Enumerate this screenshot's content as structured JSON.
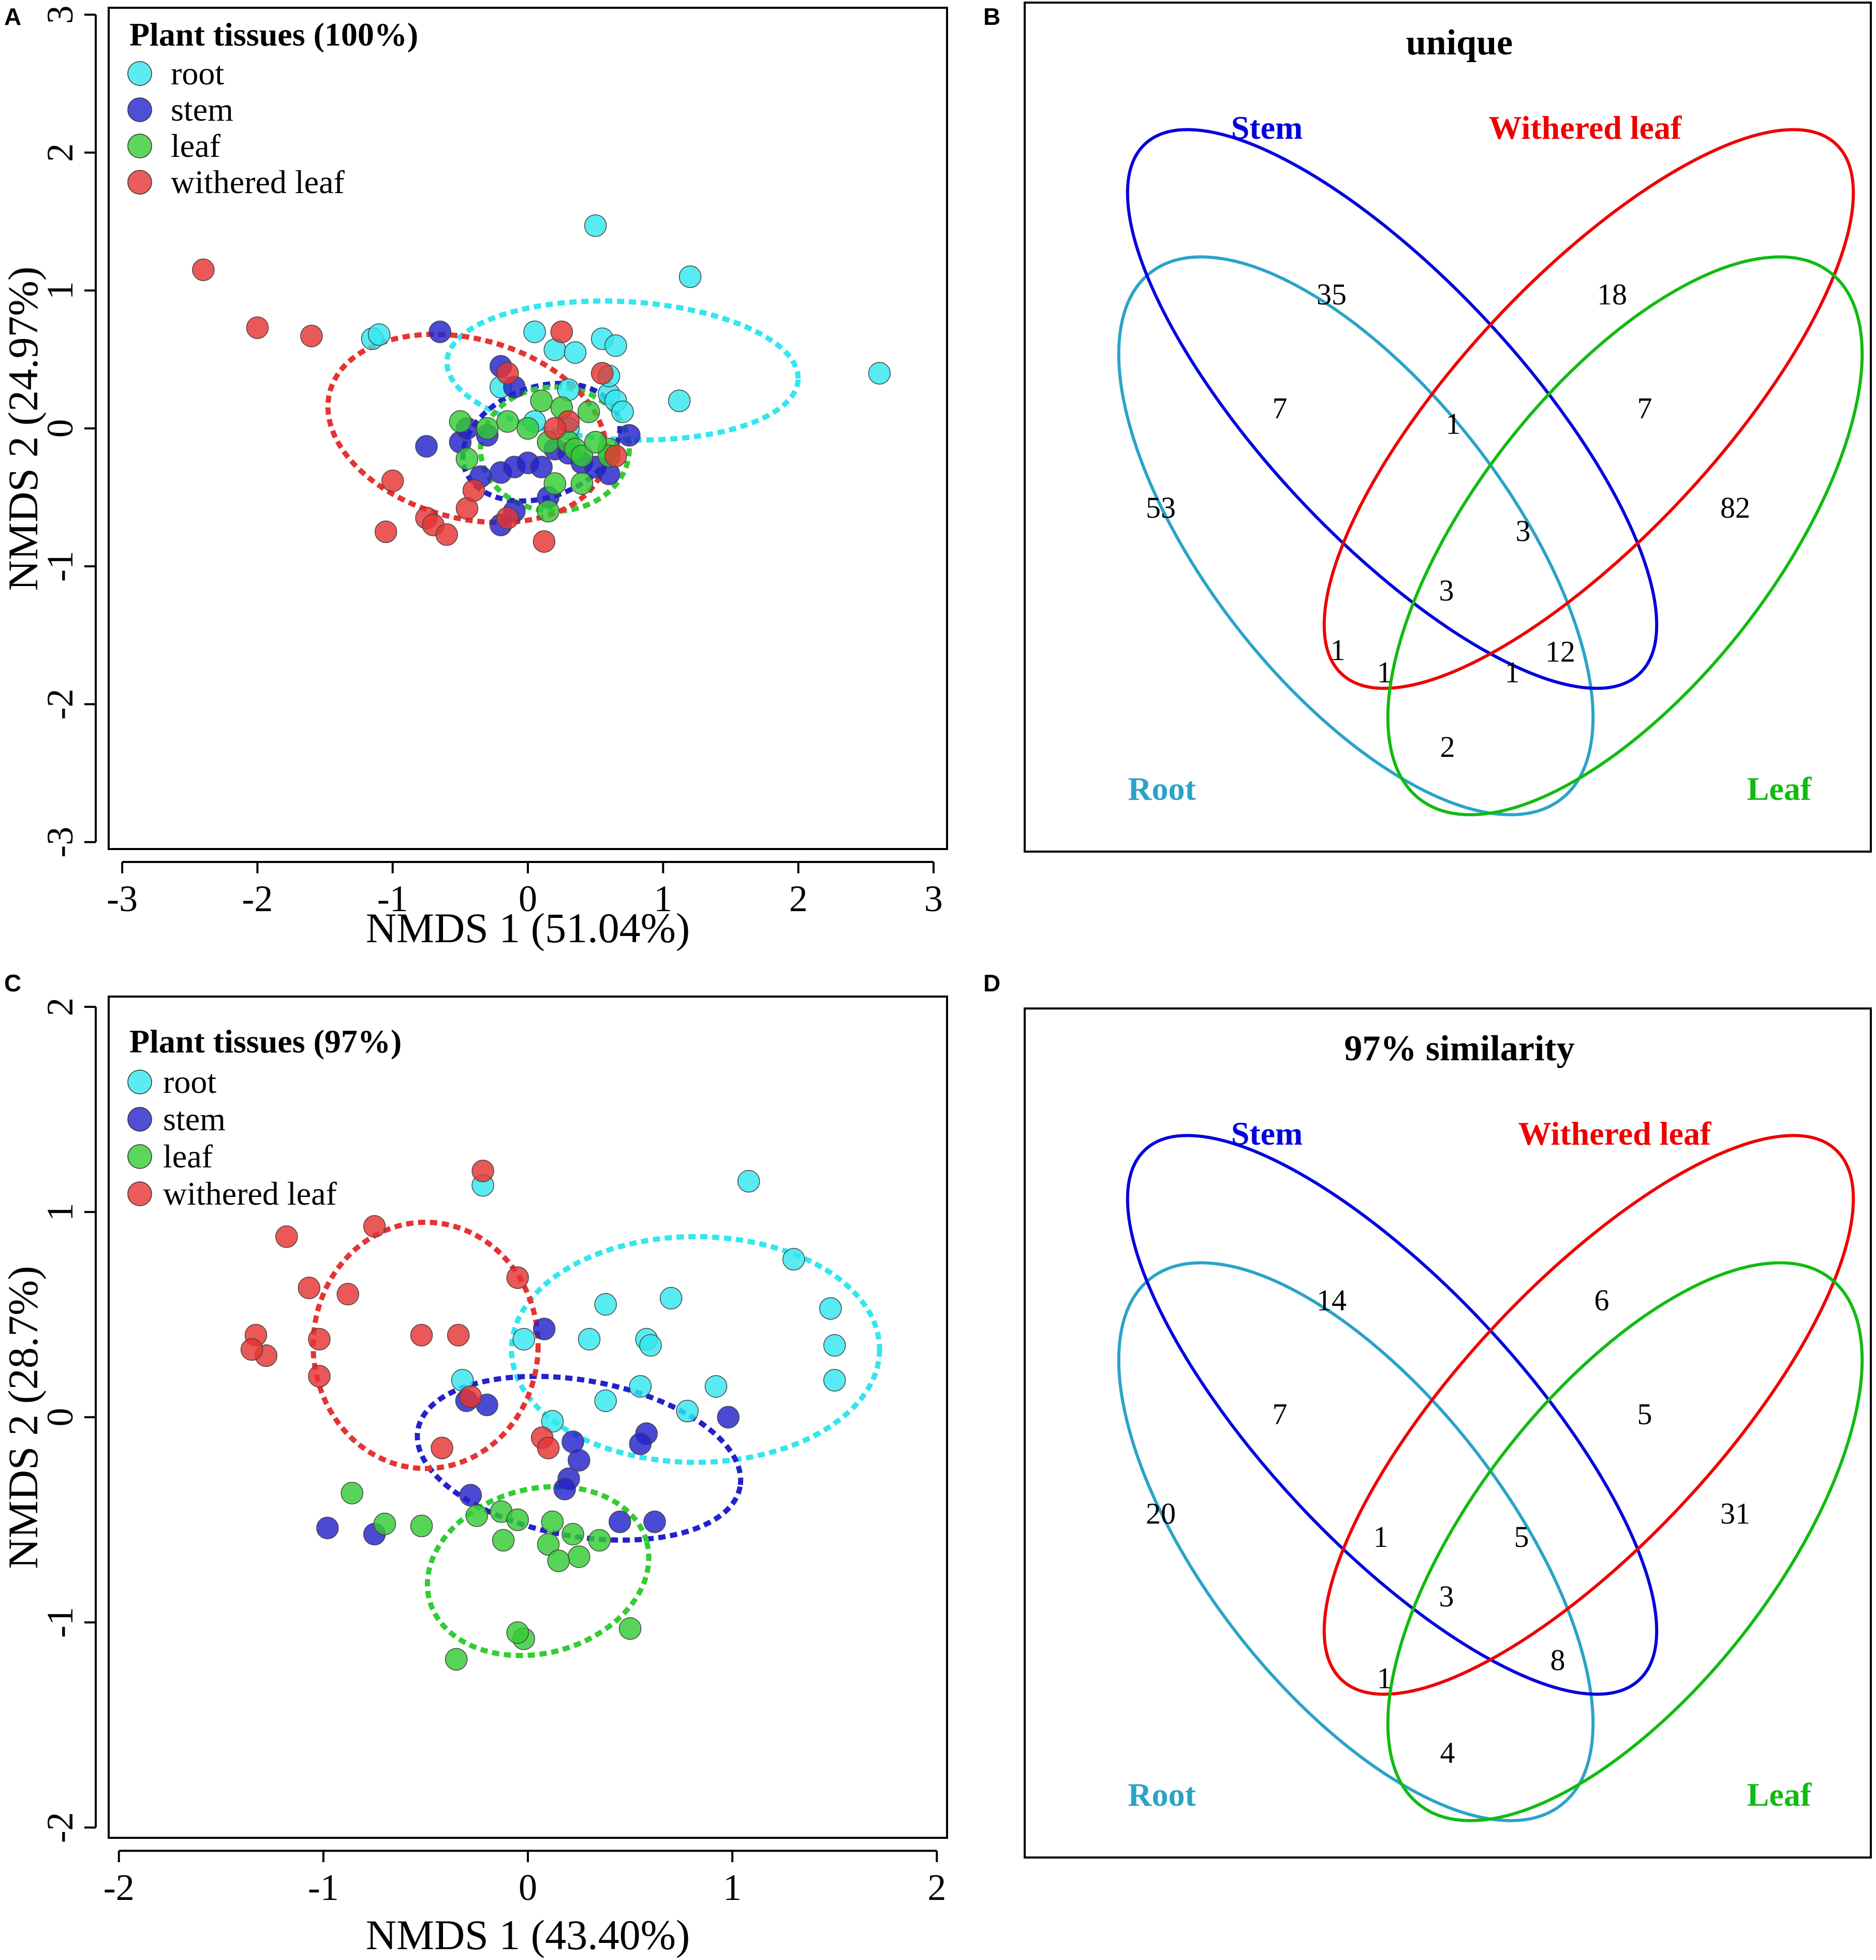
{
  "colors": {
    "root": "#33e6ef",
    "stem": "#2222cc",
    "leaf": "#33cc33",
    "withered_leaf": "#e63333",
    "venn_root": "#2aa3c8",
    "venn_stem": "#0000dd",
    "venn_withered": "#ee0000",
    "venn_leaf": "#11bb11"
  },
  "panels": {
    "a": {
      "letter": "A"
    },
    "b": {
      "letter": "B"
    },
    "c": {
      "letter": "C"
    },
    "d": {
      "letter": "D"
    }
  },
  "chart_data": [
    {
      "id": "A",
      "type": "scatter",
      "title": "",
      "legend_title": "Plant tissues (100%)",
      "legend_position": "top-left",
      "xlabel": "NMDS 1 (51.04%)",
      "ylabel": "NMDS 2 (24.97%)",
      "xlim": [
        -3.1,
        3.1
      ],
      "ylim": [
        -3.05,
        3.05
      ],
      "xticks": [
        -3,
        -2,
        -1,
        0,
        1,
        2,
        3
      ],
      "yticks": [
        -3,
        -2,
        -1,
        0,
        1,
        2,
        3
      ],
      "xtick_labels": [
        "-3",
        "-2",
        "-1",
        "0",
        "1",
        "2",
        "3"
      ],
      "ytick_labels": [
        "-3",
        "-2",
        "-1",
        "0",
        "1",
        "2",
        "3"
      ],
      "series": [
        {
          "key": "root",
          "name": "root",
          "x": [
            0.5,
            1.2,
            2.6,
            -1.15,
            -1.1,
            0.05,
            0.2,
            0.35,
            0.55,
            0.65,
            0.3,
            0.6,
            0.65,
            0.7,
            1.12,
            0.05,
            0.3,
            -0.2,
            0.6
          ],
          "y": [
            1.47,
            1.1,
            0.4,
            0.65,
            0.68,
            0.7,
            0.57,
            0.55,
            0.65,
            0.6,
            0.28,
            0.25,
            0.2,
            0.12,
            0.2,
            0.05,
            0.0,
            0.3,
            0.38
          ],
          "ellipse": {
            "cx": 0.7,
            "cy": 0.42,
            "rx": 1.3,
            "ry": 0.5,
            "angle": -3
          }
        },
        {
          "key": "stem",
          "name": "stem",
          "x": [
            -0.65,
            -0.2,
            -0.1,
            -0.75,
            -0.5,
            -0.45,
            -0.35,
            -0.2,
            -0.1,
            0.0,
            0.1,
            0.2,
            0.4,
            0.5,
            0.6,
            0.75,
            0.3,
            0.15,
            -0.2,
            -0.3,
            -0.1
          ],
          "y": [
            0.7,
            0.45,
            0.3,
            -0.13,
            -0.1,
            0.0,
            -0.35,
            -0.32,
            -0.28,
            -0.25,
            -0.28,
            -0.15,
            -0.25,
            -0.28,
            -0.33,
            -0.05,
            -0.18,
            -0.5,
            -0.7,
            -0.05,
            -0.6
          ],
          "ellipse": {
            "cx": 0.1,
            "cy": -0.1,
            "rx": 0.6,
            "ry": 0.4,
            "angle": 20
          }
        },
        {
          "key": "leaf",
          "name": "leaf",
          "x": [
            -0.5,
            -0.3,
            -0.15,
            0.1,
            0.25,
            0.45,
            -0.45,
            0.15,
            0.3,
            0.35,
            0.4,
            0.6,
            0.2,
            0.4,
            0.6,
            0.5,
            0.15,
            0.0
          ],
          "y": [
            0.05,
            0.0,
            0.05,
            0.2,
            0.15,
            0.12,
            -0.22,
            -0.1,
            -0.1,
            -0.15,
            -0.2,
            -0.15,
            -0.4,
            -0.4,
            -0.2,
            -0.1,
            -0.6,
            0.0
          ],
          "ellipse": {
            "cx": 0.2,
            "cy": -0.15,
            "rx": 0.55,
            "ry": 0.45,
            "angle": 0
          }
        },
        {
          "key": "withered_leaf",
          "name": "withered leaf",
          "x": [
            -2.4,
            -2.0,
            -1.6,
            0.25,
            0.55,
            -1.0,
            -0.75,
            -0.7,
            -0.6,
            -0.45,
            -1.05,
            0.12,
            0.3,
            0.65,
            -0.15,
            -0.15,
            0.2,
            -0.4
          ],
          "y": [
            1.15,
            0.73,
            0.67,
            0.7,
            0.4,
            -0.38,
            -0.65,
            -0.7,
            -0.77,
            -0.58,
            -0.75,
            -0.82,
            0.05,
            -0.2,
            -0.65,
            0.4,
            0.0,
            -0.45
          ],
          "ellipse": {
            "cx": -0.45,
            "cy": 0.0,
            "rx": 1.05,
            "ry": 0.65,
            "angle": -15
          }
        }
      ]
    },
    {
      "id": "B",
      "type": "venn",
      "title": "unique",
      "sets": [
        "Stem",
        "Withered leaf",
        "Root",
        "Leaf"
      ],
      "regions": [
        {
          "key": "stem_only",
          "value": 35
        },
        {
          "key": "withered_only",
          "value": 18
        },
        {
          "key": "root_stem",
          "value": 7
        },
        {
          "key": "stem_withered",
          "value": 1
        },
        {
          "key": "withered_leaf",
          "value": 7
        },
        {
          "key": "root_only",
          "value": 53
        },
        {
          "key": "leaf_only",
          "value": 82
        },
        {
          "key": "stem_withered_leaf",
          "value": 3
        },
        {
          "key": "all_four",
          "value": 3
        },
        {
          "key": "root_withered",
          "value": 1
        },
        {
          "key": "root_withered_leaf",
          "value": 1
        },
        {
          "key": "root_stem_leaf",
          "value": 1
        },
        {
          "key": "stem_leaf",
          "value": 12
        },
        {
          "key": "root_leaf",
          "value": 2
        }
      ]
    },
    {
      "id": "C",
      "type": "scatter",
      "title": "",
      "legend_title": "Plant tissues (97%)",
      "legend_position": "top-left",
      "xlabel": "NMDS 1 (43.40%)",
      "ylabel": "NMDS 2 (28.7%)",
      "xlim": [
        -2.05,
        2.05
      ],
      "ylim": [
        -2.05,
        2.05
      ],
      "xticks": [
        -2,
        -1,
        0,
        1,
        2
      ],
      "yticks": [
        -2,
        -1,
        0,
        1,
        2
      ],
      "xtick_labels": [
        "-2",
        "-1",
        "0",
        "1",
        "2"
      ],
      "ytick_labels": [
        "-2",
        "-1",
        "0",
        "1",
        "2"
      ],
      "series": [
        {
          "key": "root",
          "name": "root",
          "x": [
            1.08,
            -0.22,
            1.3,
            1.48,
            1.5,
            1.5,
            0.7,
            0.38,
            0.3,
            -0.02,
            0.58,
            0.6,
            0.92,
            0.78,
            0.55,
            0.38,
            -0.32,
            0.12
          ],
          "y": [
            1.15,
            1.13,
            0.77,
            0.53,
            0.35,
            0.18,
            0.58,
            0.55,
            0.38,
            0.38,
            0.38,
            0.35,
            0.15,
            0.03,
            0.15,
            0.08,
            0.18,
            -0.02
          ],
          "ellipse": {
            "cx": 0.82,
            "cy": 0.33,
            "rx": 0.9,
            "ry": 0.55,
            "angle": 0
          }
        },
        {
          "key": "stem",
          "name": "stem",
          "x": [
            0.08,
            -0.3,
            -0.2,
            0.22,
            0.25,
            0.2,
            0.18,
            0.58,
            0.55,
            -0.28,
            0.45,
            0.62,
            0.98,
            -0.98,
            -0.75
          ],
          "y": [
            0.43,
            0.08,
            0.06,
            -0.12,
            -0.21,
            -0.3,
            -0.35,
            -0.08,
            -0.13,
            -0.38,
            -0.51,
            -0.51,
            0.0,
            -0.54,
            -0.57
          ],
          "ellipse": {
            "cx": 0.25,
            "cy": -0.2,
            "rx": 0.8,
            "ry": 0.38,
            "angle": -10
          }
        },
        {
          "key": "leaf",
          "name": "leaf",
          "x": [
            -0.86,
            -0.7,
            -0.52,
            -0.25,
            -0.13,
            -0.05,
            0.12,
            0.22,
            0.35,
            -0.12,
            0.1,
            0.25,
            0.15,
            -0.02,
            0.5,
            -0.35,
            -0.05
          ],
          "y": [
            -0.37,
            -0.52,
            -0.53,
            -0.48,
            -0.46,
            -0.5,
            -0.51,
            -0.57,
            -0.6,
            -0.6,
            -0.62,
            -0.68,
            -0.7,
            -1.08,
            -1.03,
            -1.18,
            -1.05
          ],
          "ellipse": {
            "cx": 0.05,
            "cy": -0.75,
            "rx": 0.55,
            "ry": 0.4,
            "angle": 15
          }
        },
        {
          "key": "withered_leaf",
          "name": "withered leaf",
          "x": [
            -0.22,
            -0.75,
            -1.18,
            -1.07,
            -0.88,
            -1.33,
            -1.28,
            -1.35,
            -1.02,
            -0.52,
            -0.34,
            -0.05,
            -0.28,
            -0.42,
            -1.02,
            0.07,
            0.1
          ],
          "y": [
            1.2,
            0.93,
            0.88,
            0.63,
            0.6,
            0.4,
            0.3,
            0.33,
            0.38,
            0.4,
            0.4,
            0.68,
            0.1,
            -0.15,
            0.2,
            -0.1,
            -0.15
          ],
          "ellipse": {
            "cx": -0.5,
            "cy": 0.35,
            "rx": 0.55,
            "ry": 0.6,
            "angle": 0
          }
        }
      ]
    },
    {
      "id": "D",
      "type": "venn",
      "title": "97% similarity",
      "sets": [
        "Stem",
        "Withered leaf",
        "Root",
        "Leaf"
      ],
      "regions": [
        {
          "key": "stem_only",
          "value": 14
        },
        {
          "key": "withered_only",
          "value": 6
        },
        {
          "key": "root_stem",
          "value": 7
        },
        {
          "key": "withered_leaf",
          "value": 5
        },
        {
          "key": "root_only",
          "value": 20
        },
        {
          "key": "leaf_only",
          "value": 31
        },
        {
          "key": "root_stem_withered",
          "value": 1
        },
        {
          "key": "stem_withered_leaf",
          "value": 5
        },
        {
          "key": "all_four",
          "value": 3
        },
        {
          "key": "root_withered_leaf",
          "value": 1
        },
        {
          "key": "stem_leaf",
          "value": 8
        },
        {
          "key": "root_leaf",
          "value": 4
        }
      ]
    }
  ]
}
